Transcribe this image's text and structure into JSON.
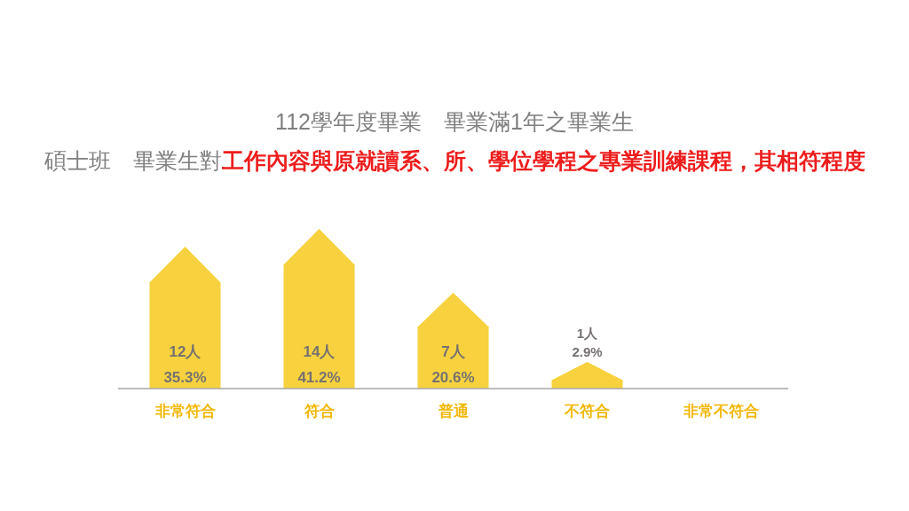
{
  "chart_data": {
    "type": "bar",
    "title": "112學年度畢業　畢業滿1年之畢業生",
    "subtitle": "碩士班　畢業生對工作內容與原就讀系、所、學位學程之專業訓練課程，其相符程度",
    "categories": [
      "非常符合",
      "符合",
      "普通",
      "不符合",
      "非常不符合"
    ],
    "values": [
      12,
      14,
      7,
      1,
      0
    ],
    "value_labels": [
      "12人\n35.3%",
      "14人\n41.2%",
      "7人\n20.6%",
      "1人\n2.9%",
      null
    ],
    "color": "#f7d23e"
  }
}
